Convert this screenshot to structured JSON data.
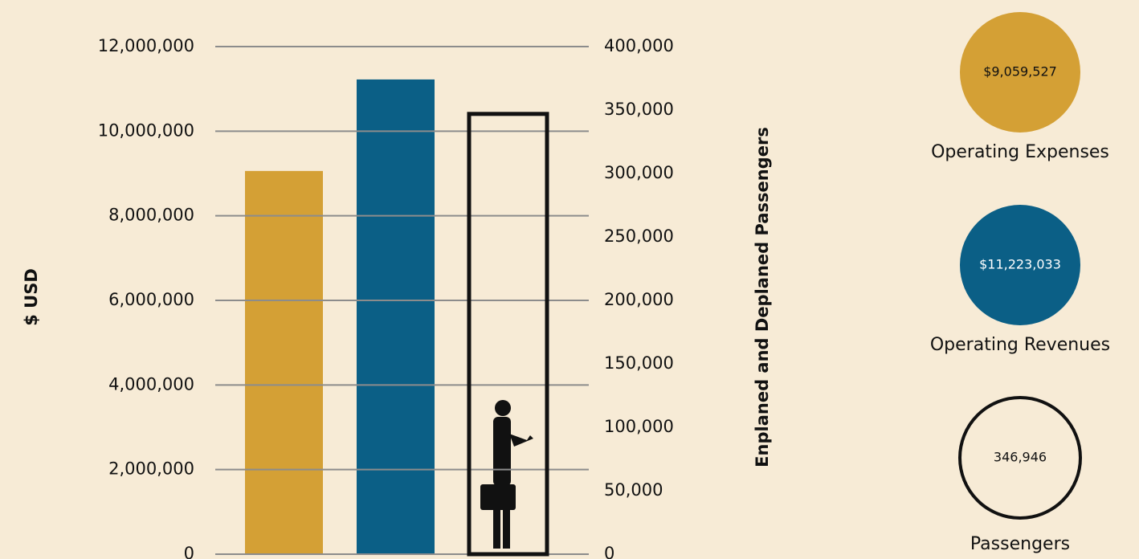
{
  "chart_data": {
    "type": "bar",
    "ylabel": "$ USD",
    "y2label": "Enplaned and Deplaned Passengers",
    "ylim": [
      0,
      12000000
    ],
    "yticks": [
      0,
      {
        "value": 2000000,
        "label": "2,000,000"
      },
      {
        "value": 4000000,
        "label": "4,000,000"
      },
      {
        "value": 6000000,
        "label": "6,000,000"
      },
      {
        "value": 8000000,
        "label": "8,000,000"
      },
      {
        "value": 10000000,
        "label": "10,000,000"
      },
      {
        "value": 12000000,
        "label": "12,000,000"
      }
    ],
    "y2lim": [
      0,
      400000
    ],
    "y2ticks": [
      0,
      {
        "value": 50000,
        "label": "50,000"
      },
      {
        "value": 100000,
        "label": "100,000"
      },
      {
        "value": 150000,
        "label": "150,000"
      },
      {
        "value": 200000,
        "label": "200,000"
      },
      {
        "value": 250000,
        "label": "250,000"
      },
      {
        "value": 300000,
        "label": "300,000"
      },
      {
        "value": 350000,
        "label": "350,000"
      },
      {
        "value": 400000,
        "label": "400,000"
      }
    ],
    "grid": true,
    "series": [
      {
        "name": "Operating Expenses",
        "color": "#d4a035",
        "values": [
          9059527
        ],
        "value_labels": [
          "$9,059,527"
        ]
      },
      {
        "name": "Operating Revenues",
        "color": "#0b5f86",
        "values": [
          11223033
        ],
        "value_labels": [
          "$11,223,033"
        ]
      },
      {
        "name": "Passengers",
        "color": "#111111",
        "axis": "y2",
        "values": [
          346946
        ],
        "value_labels": [
          "346,946"
        ]
      }
    ]
  }
}
